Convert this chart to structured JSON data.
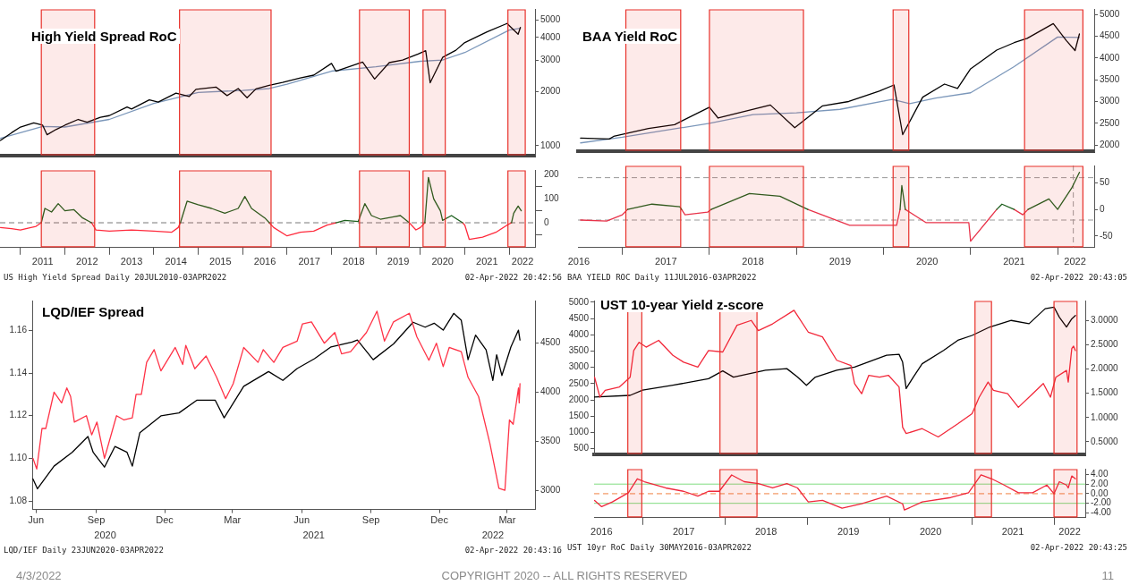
{
  "chart_data": [
    {
      "type": "line",
      "title": "High Yield Spread RoC",
      "log": "y",
      "tick_labels": "y",
      "xlim": [
        2010.54,
        2022.58
      ],
      "ylim": [
        880,
        5770
      ],
      "yticks": [
        1000,
        2000,
        3000,
        4000,
        5000
      ],
      "bands": [
        {
          "axis": "x",
          "from": 2011.47,
          "to": 2012.67,
          "color": "#e8302a"
        },
        {
          "axis": "x",
          "from": 2014.58,
          "to": 2016.64,
          "color": "#e8302a"
        },
        {
          "axis": "x",
          "from": 2018.63,
          "to": 2019.75,
          "color": "#e8302a"
        },
        {
          "axis": "x",
          "from": 2020.06,
          "to": 2020.56,
          "color": "#e8302a"
        },
        {
          "axis": "x",
          "from": 2021.97,
          "to": 2022.36,
          "color": "#e8302a"
        }
      ],
      "series": [
        {
          "color": "#000000",
          "x": [
            2010.55,
            2010.8,
            2011.0,
            2011.3,
            2011.5,
            2011.6,
            2011.8,
            2012.0,
            2012.3,
            2012.5,
            2012.8,
            2013.0,
            2013.4,
            2013.5,
            2013.9,
            2014.1,
            2014.5,
            2014.8,
            2014.95,
            2015.4,
            2015.65,
            2015.9,
            2016.1,
            2016.3,
            2016.6,
            2016.9,
            2017.3,
            2017.6,
            2018.0,
            2018.1,
            2018.7,
            2018.97,
            2019.3,
            2019.6,
            2019.95,
            2020.12,
            2020.22,
            2020.5,
            2020.8,
            2021.0,
            2021.5,
            2021.95,
            2022.2,
            2022.25
          ],
          "values": [
            1070,
            1180,
            1270,
            1340,
            1300,
            1150,
            1230,
            1300,
            1400,
            1350,
            1440,
            1470,
            1640,
            1600,
            1800,
            1750,
            1960,
            1880,
            2060,
            2120,
            1900,
            2080,
            1850,
            2070,
            2170,
            2250,
            2380,
            2470,
            2870,
            2600,
            2920,
            2350,
            2900,
            3000,
            3240,
            3380,
            2240,
            3100,
            3400,
            3750,
            4300,
            4790,
            4170,
            4550
          ]
        },
        {
          "color": "#7b97ba",
          "x": [
            2010.55,
            2011.5,
            2012.0,
            2013.0,
            2014.0,
            2015.0,
            2016.0,
            2016.6,
            2017.0,
            2018.0,
            2019.0,
            2020.0,
            2020.5,
            2021.0,
            2022.0,
            2022.25
          ],
          "values": [
            1100,
            1280,
            1270,
            1400,
            1720,
            1980,
            2030,
            2080,
            2200,
            2600,
            2750,
            2950,
            3000,
            3300,
            4400,
            4500
          ]
        }
      ]
    },
    {
      "type": "line",
      "xlim": [
        2010.54,
        2022.58
      ],
      "ylim": [
        -104,
        221
      ],
      "yticks": [
        {
          "value": -50,
          "label": null
        },
        0,
        {
          "value": 50,
          "label": null
        },
        100,
        {
          "value": 150,
          "label": null
        },
        200
      ],
      "xticks": [
        {
          "value": 2011,
          "label": null
        },
        {
          "value": 2011.5,
          "label": "2011"
        },
        {
          "value": 2012,
          "label": null
        },
        {
          "value": 2012.5,
          "label": "2012"
        },
        {
          "value": 2013,
          "label": null
        },
        {
          "value": 2013.5,
          "label": "2013"
        },
        {
          "value": 2014,
          "label": null
        },
        {
          "value": 2014.5,
          "label": "2014"
        },
        {
          "value": 2015,
          "label": null
        },
        {
          "value": 2015.5,
          "label": "2015"
        },
        {
          "value": 2016,
          "label": null
        },
        {
          "value": 2016.5,
          "label": "2016"
        },
        {
          "value": 2017,
          "label": null
        },
        {
          "value": 2017.5,
          "label": "2017"
        },
        {
          "value": 2018,
          "label": null
        },
        {
          "value": 2018.5,
          "label": "2018"
        },
        {
          "value": 2019,
          "label": null
        },
        {
          "value": 2019.5,
          "label": "2019"
        },
        {
          "value": 2020,
          "label": null
        },
        {
          "value": 2020.5,
          "label": "2020"
        },
        {
          "value": 2021,
          "label": null
        },
        {
          "value": 2021.5,
          "label": "2021"
        },
        {
          "value": 2022,
          "label": null
        },
        {
          "value": 2022.3,
          "label": "2022"
        }
      ],
      "ref_lines": [
        {
          "axis": "y",
          "value": 0,
          "color": "#777777",
          "line_style": "dashed"
        }
      ],
      "bands": [
        {
          "axis": "x",
          "from": 2011.47,
          "to": 2012.67,
          "color": "#e8302a"
        },
        {
          "axis": "x",
          "from": 2014.58,
          "to": 2016.64,
          "color": "#e8302a"
        },
        {
          "axis": "x",
          "from": 2018.63,
          "to": 2019.75,
          "color": "#e8302a"
        },
        {
          "axis": "x",
          "from": 2020.06,
          "to": 2020.56,
          "color": "#e8302a"
        },
        {
          "axis": "x",
          "from": 2021.97,
          "to": 2022.36,
          "color": "#e8302a"
        }
      ],
      "x": [
        2010.55,
        2010.8,
        2011.0,
        2011.35,
        2011.47,
        2011.55,
        2011.7,
        2011.85,
        2012.0,
        2012.2,
        2012.4,
        2012.6,
        2012.7,
        2013.0,
        2013.5,
        2014.0,
        2014.4,
        2014.55,
        2014.6,
        2014.75,
        2015.0,
        2015.3,
        2015.6,
        2015.9,
        2016.05,
        2016.2,
        2016.5,
        2016.6,
        2016.7,
        2017.0,
        2017.3,
        2017.6,
        2017.9,
        2018.1,
        2018.3,
        2018.6,
        2018.75,
        2018.9,
        2019.1,
        2019.4,
        2019.55,
        2019.75,
        2019.9,
        2020.0,
        2020.1,
        2020.18,
        2020.3,
        2020.45,
        2020.5,
        2020.7,
        2020.95,
        2021.0,
        2021.1,
        2021.4,
        2021.7,
        2021.95,
        2022.05,
        2022.1,
        2022.2,
        2022.27
      ],
      "series": [
        {
          "color": "#1d5f1d",
          "values": [
            null,
            null,
            null,
            null,
            0,
            60,
            45,
            80,
            50,
            55,
            20,
            0,
            null,
            null,
            null,
            null,
            null,
            null,
            0,
            90,
            75,
            60,
            40,
            60,
            110,
            60,
            20,
            0,
            null,
            null,
            null,
            null,
            null,
            0,
            10,
            5,
            80,
            30,
            15,
            25,
            30,
            0,
            null,
            null,
            0,
            190,
            100,
            50,
            10,
            30,
            0,
            null,
            null,
            null,
            null,
            null,
            0,
            40,
            70,
            50
          ]
        },
        {
          "color": "#ff2a3c",
          "values": [
            -20,
            -25,
            -30,
            -15,
            0,
            null,
            null,
            null,
            null,
            null,
            null,
            0,
            -30,
            -35,
            -30,
            -35,
            -40,
            -20,
            0,
            null,
            null,
            null,
            null,
            null,
            null,
            null,
            null,
            0,
            -20,
            -55,
            -40,
            -35,
            -10,
            0,
            null,
            null,
            null,
            null,
            null,
            null,
            null,
            0,
            -30,
            -20,
            0,
            null,
            null,
            null,
            null,
            null,
            0,
            -10,
            -70,
            -60,
            -40,
            -10,
            0,
            null,
            null,
            null
          ]
        }
      ],
      "annotations": [
        "US High Yield Spread  Daily 20JUL2010-03APR2022",
        "02-Apr-2022 20:42:56"
      ]
    },
    {
      "type": "line",
      "title": "BAA Yield RoC",
      "tick_labels": "y",
      "xlim": [
        2016.49,
        2022.42
      ],
      "ylim": [
        1860,
        5125
      ],
      "yticks": [
        2000,
        2500,
        3000,
        3500,
        4000,
        4500,
        5000
      ],
      "bands": [
        {
          "axis": "x",
          "from": 2017.04,
          "to": 2017.67,
          "color": "#e8302a"
        },
        {
          "axis": "x",
          "from": 2018.0,
          "to": 2019.08,
          "color": "#e8302a"
        },
        {
          "axis": "x",
          "from": 2020.11,
          "to": 2020.29,
          "color": "#e8302a"
        },
        {
          "axis": "x",
          "from": 2021.62,
          "to": 2022.29,
          "color": "#e8302a"
        }
      ],
      "series": [
        {
          "color": "#000000",
          "x": [
            2016.52,
            2016.85,
            2016.9,
            2017.3,
            2017.6,
            2018.0,
            2018.1,
            2018.7,
            2018.98,
            2019.3,
            2019.6,
            2019.95,
            2020.12,
            2020.22,
            2020.45,
            2020.7,
            2020.85,
            2021.0,
            2021.3,
            2021.5,
            2021.65,
            2021.95,
            2022.1,
            2022.2,
            2022.25
          ],
          "values": [
            2160,
            2140,
            2200,
            2380,
            2470,
            2870,
            2620,
            2920,
            2400,
            2900,
            3000,
            3240,
            3380,
            2240,
            3100,
            3400,
            3300,
            3750,
            4180,
            4350,
            4450,
            4790,
            4400,
            4170,
            4550
          ]
        },
        {
          "color": "#7b97ba",
          "x": [
            2016.52,
            2017.0,
            2018.0,
            2018.5,
            2019.0,
            2019.5,
            2020.1,
            2020.3,
            2020.6,
            2021.0,
            2021.5,
            2022.0,
            2022.25
          ],
          "values": [
            2050,
            2180,
            2500,
            2700,
            2740,
            2820,
            3050,
            2950,
            3080,
            3200,
            3800,
            4480,
            4470
          ]
        }
      ]
    },
    {
      "type": "line",
      "xlim": [
        2016.49,
        2022.42
      ],
      "ylim": [
        -72,
        83
      ],
      "yticks": [
        -50,
        0,
        50
      ],
      "xticks": [
        {
          "value": 2016.5,
          "label": "2016"
        },
        {
          "value": 2017,
          "label": null
        },
        {
          "value": 2017.5,
          "label": "2017"
        },
        {
          "value": 2018,
          "label": null
        },
        {
          "value": 2018.5,
          "label": "2018"
        },
        {
          "value": 2019,
          "label": null
        },
        {
          "value": 2019.5,
          "label": "2019"
        },
        {
          "value": 2020,
          "label": null
        },
        {
          "value": 2020.5,
          "label": "2020"
        },
        {
          "value": 2021,
          "label": null
        },
        {
          "value": 2021.5,
          "label": "2021"
        },
        {
          "value": 2022,
          "label": null
        },
        {
          "value": 2022.2,
          "label": "2022"
        }
      ],
      "ref_lines": [
        {
          "axis": "y",
          "value": 60,
          "color": "#999999",
          "line_style": "dashed"
        },
        {
          "axis": "y",
          "value": -20,
          "color": "#999999",
          "line_style": "dashed"
        },
        {
          "axis": "x",
          "value": 2022.18,
          "color": "#999999",
          "line_style": "dashed"
        }
      ],
      "bands": [
        {
          "axis": "x",
          "from": 2017.04,
          "to": 2017.67,
          "color": "#e8302a"
        },
        {
          "axis": "x",
          "from": 2018.0,
          "to": 2019.08,
          "color": "#e8302a"
        },
        {
          "axis": "x",
          "from": 2020.11,
          "to": 2020.29,
          "color": "#e8302a"
        },
        {
          "axis": "x",
          "from": 2021.62,
          "to": 2022.29,
          "color": "#e8302a"
        }
      ],
      "x": [
        2016.52,
        2016.82,
        2017.0,
        2017.06,
        2017.34,
        2017.66,
        2017.68,
        2017.72,
        2017.98,
        2018.02,
        2018.46,
        2018.81,
        2019.13,
        2019.61,
        2020.15,
        2020.19,
        2020.21,
        2020.25,
        2020.49,
        2020.98,
        2021.0,
        2021.2,
        2021.3,
        2021.36,
        2021.5,
        2021.6,
        2021.66,
        2021.9,
        2022.0,
        2022.16,
        2022.25
      ],
      "series": [
        {
          "color": "#1d5f1d",
          "values": [
            null,
            null,
            null,
            0,
            10,
            5,
            0,
            null,
            null,
            0,
            30,
            25,
            0,
            null,
            null,
            0,
            45,
            0,
            null,
            null,
            null,
            null,
            0,
            10,
            0,
            null,
            0,
            20,
            0,
            40,
            70
          ]
        },
        {
          "color": "#e8334a",
          "values": [
            -20,
            -22,
            -10,
            0,
            null,
            null,
            0,
            -10,
            -5,
            0,
            null,
            null,
            0,
            -30,
            -30,
            0,
            null,
            0,
            -25,
            -25,
            -60,
            -20,
            0,
            null,
            0,
            -10,
            0,
            null,
            null,
            null,
            null
          ]
        }
      ],
      "annotations": [
        "BAA YIELD ROC  Daily 11JUL2016-03APR2022",
        "02-Apr-2022 20:43:05"
      ]
    },
    {
      "type": "line",
      "title": "LQD/IEF Spread",
      "xlim": [
        "2020-06-22",
        "2022-04-21"
      ],
      "xticks": [
        {
          "value": "2020-06-27",
          "label": "Jun"
        },
        {
          "value": "2020-09-15",
          "label": "Sep"
        },
        {
          "value": "2020-12-15",
          "label": "Dec"
        },
        {
          "value": "2021-03-15",
          "label": "Mar"
        },
        {
          "value": "2021-06-15",
          "label": "Jun"
        },
        {
          "value": "2021-09-15",
          "label": "Sep"
        },
        {
          "value": "2021-12-15",
          "label": "Dec"
        },
        {
          "value": "2022-03-15",
          "label": "Mar"
        }
      ],
      "x2lim": [
        "2020-06-22",
        "2022-04-21"
      ],
      "x2ticks": [
        {
          "value": "2020-09-27",
          "label": "2020"
        },
        {
          "value": "2021-07-01",
          "label": "2021"
        },
        {
          "value": "2022-02-24",
          "label": "2022"
        }
      ],
      "ylim": [
        1.076,
        1.174
      ],
      "yticks": [
        1.08,
        {
          "value": 1.1,
          "label": "1.10"
        },
        1.12,
        1.14,
        1.16
      ],
      "y2lim": [
        2810,
        4930
      ],
      "y2ticks": [
        3000,
        3500,
        4000,
        4500
      ],
      "series": [
        {
          "color": "#ff3347",
          "x": [
            "2020-06-23",
            "2020-06-28",
            "2020-07-05",
            "2020-07-10",
            "2020-07-21",
            "2020-07-31",
            "2020-08-07",
            "2020-08-12",
            "2020-08-17",
            "2020-09-02",
            "2020-09-09",
            "2020-09-16",
            "2020-09-26",
            "2020-10-12",
            "2020-10-22",
            "2020-11-02",
            "2020-11-07",
            "2020-11-14",
            "2020-11-21",
            "2020-12-01",
            "2020-12-10",
            "2020-12-29",
            "2021-01-08",
            "2021-01-12",
            "2021-01-24",
            "2021-02-08",
            "2021-02-22",
            "2021-03-06",
            "2021-03-16",
            "2021-03-30",
            "2021-04-18",
            "2021-04-25",
            "2021-05-09",
            "2021-05-21",
            "2021-06-09",
            "2021-06-16",
            "2021-06-28",
            "2021-07-15",
            "2021-07-29",
            "2021-08-07",
            "2021-08-19",
            "2021-09-09",
            "2021-09-23",
            "2021-10-03",
            "2021-10-15",
            "2021-11-05",
            "2021-11-15",
            "2021-12-01",
            "2021-12-11",
            "2021-12-20",
            "2021-12-28",
            "2022-01-13",
            "2022-01-22",
            "2022-02-05",
            "2022-02-20",
            "2022-03-04",
            "2022-03-12",
            "2022-03-18",
            "2022-03-23",
            "2022-03-30",
            "2022-03-31",
            "2022-04-01"
          ],
          "values": [
            1.1,
            1.095,
            1.114,
            1.114,
            1.131,
            1.126,
            1.133,
            1.129,
            1.117,
            1.12,
            1.111,
            1.117,
            1.1,
            1.12,
            1.118,
            1.119,
            1.13,
            1.13,
            1.145,
            1.151,
            1.141,
            1.152,
            1.144,
            1.153,
            1.142,
            1.148,
            1.138,
            1.128,
            1.135,
            1.152,
            1.145,
            1.151,
            1.145,
            1.152,
            1.155,
            1.163,
            1.164,
            1.154,
            1.159,
            1.149,
            1.15,
            1.159,
            1.169,
            1.155,
            1.164,
            1.168,
            1.157,
            1.146,
            1.154,
            1.143,
            1.152,
            1.15,
            1.138,
            1.129,
            1.107,
            1.086,
            1.085,
            1.118,
            1.116,
            1.133,
            1.126,
            1.135
          ]
        },
        {
          "color": "#000000",
          "axis": "y2",
          "x": [
            "2020-06-23",
            "2020-06-29",
            "2020-07-21",
            "2020-08-14",
            "2020-09-04",
            "2020-09-11",
            "2020-09-26",
            "2020-10-10",
            "2020-10-26",
            "2020-11-02",
            "2020-11-12",
            "2020-12-10",
            "2021-01-03",
            "2021-01-27",
            "2021-02-20",
            "2021-03-04",
            "2021-03-30",
            "2021-05-02",
            "2021-05-21",
            "2021-06-09",
            "2021-07-02",
            "2021-07-24",
            "2021-08-21",
            "2021-08-28",
            "2021-09-18",
            "2021-10-15",
            "2021-11-10",
            "2021-11-26",
            "2021-12-08",
            "2021-12-20",
            "2022-01-03",
            "2022-01-13",
            "2022-01-22",
            "2022-02-01",
            "2022-02-15",
            "2022-02-24",
            "2022-03-01",
            "2022-03-08",
            "2022-03-20",
            "2022-03-30",
            "2022-04-01"
          ],
          "values": [
            3120,
            3020,
            3250,
            3390,
            3550,
            3390,
            3240,
            3450,
            3390,
            3250,
            3590,
            3760,
            3790,
            3920,
            3920,
            3740,
            4060,
            4210,
            4120,
            4240,
            4340,
            4460,
            4510,
            4530,
            4330,
            4490,
            4710,
            4660,
            4700,
            4630,
            4800,
            4730,
            4330,
            4580,
            4430,
            4120,
            4380,
            4170,
            4460,
            4630,
            4530
          ]
        }
      ],
      "annotations": [
        "LQD/IEF  Daily 23JUN2020-03APR2022",
        "02-Apr-2022 20:43:16"
      ]
    },
    {
      "type": "line",
      "title": "UST 10-year Yield z-score",
      "tick_labels": "y",
      "xlim": [
        2016.41,
        2022.38
      ],
      "ylim": [
        327,
        5051
      ],
      "yticks": [
        500,
        1000,
        1500,
        2000,
        2500,
        3000,
        3500,
        4000,
        4500,
        5000
      ],
      "y2lim": [
        0.24,
        3.41
      ],
      "y2ticks": [
        {
          "value": 0.5,
          "label": "0.5000"
        },
        {
          "value": 1,
          "label": "1.0000"
        },
        {
          "value": 1.5,
          "label": "1.5000"
        },
        {
          "value": 2,
          "label": "2.0000"
        },
        {
          "value": 2.5,
          "label": "2.5000"
        },
        {
          "value": 3,
          "label": "3.0000"
        }
      ],
      "bands": [
        {
          "axis": "x",
          "from": 2016.82,
          "to": 2016.99,
          "color": "#e8302a"
        },
        {
          "axis": "x",
          "from": 2017.94,
          "to": 2018.39,
          "color": "#e8302a"
        },
        {
          "axis": "x",
          "from": 2021.04,
          "to": 2021.24,
          "color": "#e8302a"
        },
        {
          "axis": "x",
          "from": 2022.0,
          "to": 2022.28,
          "color": "#e8302a"
        }
      ],
      "series": [
        {
          "color": "#f2283a",
          "axis": "y2",
          "x": [
            2016.416,
            2016.481,
            2016.545,
            2016.719,
            2016.848,
            2016.892,
            2016.957,
            2017.043,
            2017.195,
            2017.368,
            2017.498,
            2017.671,
            2017.801,
            2017.974,
            2018.147,
            2018.32,
            2018.407,
            2018.58,
            2018.84,
            2019.013,
            2019.186,
            2019.359,
            2019.532,
            2019.576,
            2019.662,
            2019.749,
            2019.879,
            2019.987,
            2020.117,
            2020.16,
            2020.203,
            2020.398,
            2020.593,
            2020.831,
            2021.004,
            2021.091,
            2021.199,
            2021.264,
            2021.437,
            2021.567,
            2021.74,
            2021.87,
            2021.957,
            2022.022,
            2022.152,
            2022.173,
            2022.216,
            2022.238,
            2022.26
          ],
          "values": [
            1.83,
            1.42,
            1.56,
            1.63,
            1.83,
            2.38,
            2.55,
            2.45,
            2.59,
            2.28,
            2.14,
            2.04,
            2.38,
            2.35,
            2.9,
            3.0,
            2.79,
            2.93,
            3.21,
            2.76,
            2.66,
            2.18,
            2.07,
            1.7,
            1.49,
            1.87,
            1.83,
            1.87,
            1.63,
            0.8,
            0.67,
            0.77,
            0.6,
            0.87,
            1.08,
            1.42,
            1.73,
            1.56,
            1.49,
            1.21,
            1.49,
            1.7,
            1.42,
            1.83,
            1.97,
            1.73,
            2.42,
            2.47,
            2.38
          ]
        },
        {
          "color": "#000000",
          "x": [
            2016.41,
            2016.848,
            2017.0,
            2017.368,
            2017.801,
            2017.974,
            2018.104,
            2018.494,
            2018.753,
            2018.883,
            2018.991,
            2019.1,
            2019.359,
            2019.576,
            2019.965,
            2020.117,
            2020.16,
            2020.203,
            2020.29,
            2020.398,
            2020.658,
            2020.831,
            2021.004,
            2021.221,
            2021.481,
            2021.697,
            2021.892,
            2022.0,
            2022.065,
            2022.152,
            2022.216,
            2022.26
          ],
          "values": [
            2090,
            2140,
            2300,
            2450,
            2650,
            2890,
            2700,
            2910,
            2960,
            2700,
            2450,
            2700,
            2910,
            3010,
            3370,
            3400,
            3160,
            2350,
            2700,
            3110,
            3520,
            3830,
            3980,
            4240,
            4440,
            4340,
            4800,
            4850,
            4540,
            4240,
            4490,
            4590
          ]
        }
      ]
    },
    {
      "type": "line",
      "xlim": [
        2016.41,
        2022.38
      ],
      "ylim": [
        -5,
        5.2
      ],
      "yticks": [
        {
          "value": 4,
          "label": "4.00"
        },
        {
          "value": 2,
          "label": "2.00"
        },
        {
          "value": 0,
          "label": "0.00"
        },
        {
          "value": -2,
          "label": "-2.00"
        },
        {
          "value": -4,
          "label": "-4.00"
        }
      ],
      "xticks": [
        {
          "value": 2016.5,
          "label": "2016"
        },
        {
          "value": 2017,
          "label": null
        },
        {
          "value": 2017.5,
          "label": "2017"
        },
        {
          "value": 2018,
          "label": null
        },
        {
          "value": 2018.5,
          "label": "2018"
        },
        {
          "value": 2019,
          "label": null
        },
        {
          "value": 2019.5,
          "label": "2019"
        },
        {
          "value": 2020,
          "label": null
        },
        {
          "value": 2020.5,
          "label": "2020"
        },
        {
          "value": 2021,
          "label": null
        },
        {
          "value": 2021.5,
          "label": "2021"
        },
        {
          "value": 2022,
          "label": null
        },
        {
          "value": 2022.19,
          "label": "2022"
        }
      ],
      "ref_lines": [
        {
          "axis": "y",
          "value": 2,
          "color": "#80dc80",
          "line_style": "solid"
        },
        {
          "axis": "y",
          "value": -2,
          "color": "#80dc80",
          "line_style": "solid"
        },
        {
          "axis": "y",
          "value": 0,
          "color": "#f08040",
          "line_style": "dashed"
        }
      ],
      "bands": [
        {
          "axis": "x",
          "from": 2016.82,
          "to": 2016.99,
          "color": "#e8302a"
        },
        {
          "axis": "x",
          "from": 2017.94,
          "to": 2018.39,
          "color": "#e8302a"
        },
        {
          "axis": "x",
          "from": 2021.04,
          "to": 2021.24,
          "color": "#e8302a"
        },
        {
          "axis": "x",
          "from": 2022.0,
          "to": 2022.28,
          "color": "#e8302a"
        }
      ],
      "series": [
        {
          "color": "#f0283c",
          "x": [
            2016.416,
            2016.502,
            2016.632,
            2016.827,
            2016.935,
            2017.022,
            2017.281,
            2017.498,
            2017.671,
            2017.801,
            2017.931,
            2018.082,
            2018.234,
            2018.407,
            2018.58,
            2018.753,
            2018.883,
            2019.013,
            2019.186,
            2019.424,
            2019.662,
            2019.965,
            2020.16,
            2020.182,
            2020.398,
            2020.745,
            2020.961,
            2021.113,
            2021.242,
            2021.394,
            2021.567,
            2021.74,
            2021.913,
            2022.0,
            2022.065,
            2022.152,
            2022.173,
            2022.216,
            2022.26
          ],
          "values": [
            -1.4,
            -2.7,
            -1.7,
            0.2,
            3.1,
            2.5,
            1.2,
            0.5,
            -0.5,
            0.5,
            0.5,
            3.9,
            2.5,
            2.1,
            1.2,
            2.1,
            1.2,
            -1.7,
            -1.4,
            -3.0,
            -2.1,
            -0.5,
            -2.1,
            -3.4,
            -1.7,
            -0.8,
            0.2,
            3.9,
            3.1,
            1.8,
            0.2,
            0.2,
            1.8,
            0,
            2.5,
            1.8,
            1.2,
            3.7,
            3.1
          ]
        }
      ],
      "annotations": [
        "UST 10yr RoC  Daily 30MAY2016-03APR2022",
        "02-Apr-2022 20:43:25",
        "4/3/2022",
        "COPYRIGHT 2020 -- ALL RIGHTS RESERVED",
        "11"
      ]
    }
  ]
}
